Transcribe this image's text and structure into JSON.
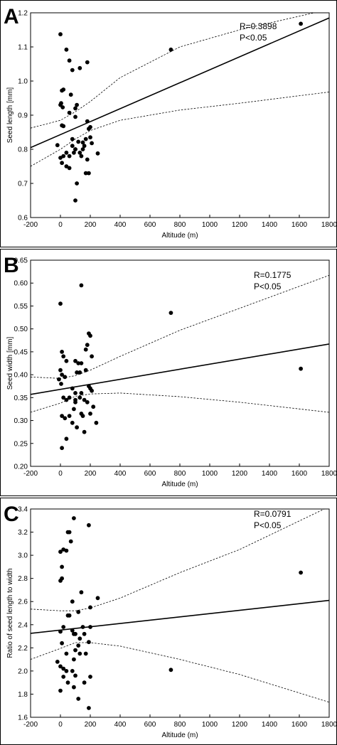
{
  "chart_data": [
    {
      "type": "scatter",
      "panel_label": "A",
      "title": "",
      "xlabel": "Altitude (m)",
      "ylabel": "Seed length [mm]",
      "xlim": [
        -200,
        1800
      ],
      "ylim": [
        0.6,
        1.2
      ],
      "xticks": [
        -200,
        0,
        200,
        400,
        600,
        800,
        1000,
        1200,
        1400,
        1600,
        1800
      ],
      "yticks": [
        0.6,
        0.7,
        0.8,
        0.9,
        1.0,
        1.1,
        1.2
      ],
      "ytick_labels": [
        "0.6",
        "0.7",
        "0.8",
        "0.9",
        "1.0",
        "1.1",
        "1.2"
      ],
      "annotation": [
        "R=0.3898",
        "P<0.05"
      ],
      "fit_line": {
        "x": [
          -200,
          1800
        ],
        "y": [
          0.805,
          1.185
        ]
      },
      "ci_upper": {
        "x": [
          -200,
          0,
          100,
          200,
          400,
          800,
          1200,
          1800
        ],
        "y": [
          0.862,
          0.885,
          0.91,
          0.94,
          1.01,
          1.1,
          1.15,
          1.21
        ]
      },
      "ci_lower": {
        "x": [
          -200,
          0,
          100,
          200,
          400,
          800,
          1200,
          1800
        ],
        "y": [
          0.75,
          0.8,
          0.83,
          0.855,
          0.885,
          0.915,
          0.935,
          0.968
        ]
      },
      "points": {
        "x": [
          0,
          10,
          20,
          5,
          0,
          15,
          40,
          60,
          80,
          130,
          180,
          70,
          110,
          100,
          10,
          20,
          60,
          100,
          180,
          200,
          190,
          80,
          120,
          150,
          170,
          200,
          160,
          210,
          250,
          80,
          100,
          130,
          -20,
          140,
          180,
          100,
          40,
          20,
          0,
          60,
          90,
          150,
          10,
          40,
          60,
          110,
          190,
          170,
          100,
          740,
          1610
        ],
        "y": [
          1.137,
          0.972,
          0.975,
          0.935,
          0.93,
          0.923,
          1.092,
          1.06,
          1.032,
          1.038,
          1.055,
          0.96,
          0.93,
          0.92,
          0.87,
          0.868,
          0.907,
          0.895,
          0.882,
          0.865,
          0.86,
          0.83,
          0.822,
          0.82,
          0.83,
          0.835,
          0.81,
          0.818,
          0.788,
          0.81,
          0.8,
          0.79,
          0.812,
          0.78,
          0.77,
          0.8,
          0.79,
          0.78,
          0.775,
          0.78,
          0.79,
          0.8,
          0.76,
          0.75,
          0.745,
          0.7,
          0.73,
          0.73,
          0.65,
          1.092,
          1.168
        ]
      }
    },
    {
      "type": "scatter",
      "panel_label": "B",
      "title": "",
      "xlabel": "Altitude (m)",
      "ylabel": "Seed width [mm]",
      "xlim": [
        -200,
        1800
      ],
      "ylim": [
        0.2,
        0.65
      ],
      "xticks": [
        -200,
        0,
        200,
        400,
        600,
        800,
        1000,
        1200,
        1400,
        1600,
        1800
      ],
      "yticks": [
        0.2,
        0.25,
        0.3,
        0.35,
        0.4,
        0.45,
        0.5,
        0.55,
        0.6,
        0.65
      ],
      "ytick_labels": [
        "0.20",
        "0.25",
        "0.30",
        "0.35",
        "0.40",
        "0.45",
        "0.50",
        "0.55",
        "0.60",
        "0.65"
      ],
      "annotation": [
        "R=0.1775",
        "P<0.05"
      ],
      "fit_line": {
        "x": [
          -200,
          1800
        ],
        "y": [
          0.357,
          0.467
        ]
      },
      "ci_upper": {
        "x": [
          -200,
          0,
          100,
          200,
          400,
          800,
          1200,
          1800
        ],
        "y": [
          0.395,
          0.392,
          0.398,
          0.41,
          0.44,
          0.497,
          0.545,
          0.617
        ]
      },
      "ci_lower": {
        "x": [
          -200,
          0,
          100,
          200,
          400,
          800,
          1200,
          1800
        ],
        "y": [
          0.318,
          0.338,
          0.353,
          0.358,
          0.36,
          0.352,
          0.34,
          0.318
        ]
      },
      "points": {
        "x": [
          0,
          140,
          190,
          200,
          180,
          170,
          210,
          10,
          20,
          40,
          100,
          120,
          140,
          170,
          0,
          10,
          30,
          110,
          130,
          -10,
          5,
          190,
          200,
          210,
          80,
          100,
          140,
          20,
          60,
          40,
          100,
          160,
          180,
          100,
          130,
          220,
          90,
          10,
          30,
          60,
          140,
          150,
          200,
          240,
          80,
          110,
          160,
          40,
          10,
          740,
          1610
        ],
        "y": [
          0.555,
          0.595,
          0.49,
          0.485,
          0.465,
          0.455,
          0.44,
          0.45,
          0.44,
          0.43,
          0.43,
          0.425,
          0.425,
          0.41,
          0.41,
          0.4,
          0.395,
          0.405,
          0.405,
          0.39,
          0.38,
          0.375,
          0.37,
          0.365,
          0.37,
          0.36,
          0.36,
          0.35,
          0.35,
          0.345,
          0.345,
          0.345,
          0.34,
          0.34,
          0.35,
          0.33,
          0.325,
          0.31,
          0.305,
          0.31,
          0.315,
          0.31,
          0.315,
          0.295,
          0.295,
          0.285,
          0.275,
          0.26,
          0.24,
          0.535,
          0.413
        ]
      }
    },
    {
      "type": "scatter",
      "panel_label": "C",
      "title": "",
      "xlabel": "Altitude (m)",
      "ylabel": "Ratio of seed length to width",
      "xlim": [
        -200,
        1800
      ],
      "ylim": [
        1.6,
        3.4
      ],
      "xticks": [
        -200,
        0,
        200,
        400,
        600,
        800,
        1000,
        1200,
        1400,
        1600,
        1800
      ],
      "yticks": [
        1.6,
        1.8,
        2.0,
        2.2,
        2.4,
        2.6,
        2.8,
        3.0,
        3.2,
        3.4
      ],
      "ytick_labels": [
        "1.6",
        "1.8",
        "2.0",
        "2.2",
        "2.4",
        "2.6",
        "2.8",
        "3.0",
        "3.2",
        "3.4"
      ],
      "annotation": [
        "R=0.0791",
        "P<0.05"
      ],
      "fit_line": {
        "x": [
          -200,
          1800
        ],
        "y": [
          2.325,
          2.61
        ]
      },
      "ci_upper": {
        "x": [
          -200,
          0,
          100,
          200,
          400,
          800,
          1200,
          1800
        ],
        "y": [
          2.535,
          2.52,
          2.52,
          2.545,
          2.63,
          2.85,
          3.05,
          3.42
        ]
      },
      "ci_lower": {
        "x": [
          -200,
          0,
          100,
          200,
          400,
          800,
          1200,
          1800
        ],
        "y": [
          2.1,
          2.195,
          2.245,
          2.245,
          2.215,
          2.1,
          1.97,
          1.73
        ]
      },
      "points": {
        "x": [
          90,
          190,
          50,
          60,
          70,
          20,
          40,
          0,
          10,
          0,
          10,
          140,
          80,
          250,
          120,
          50,
          60,
          200,
          80,
          150,
          200,
          20,
          0,
          90,
          100,
          130,
          160,
          120,
          190,
          100,
          10,
          40,
          130,
          170,
          90,
          -20,
          0,
          20,
          40,
          80,
          100,
          200,
          20,
          50,
          90,
          160,
          0,
          120,
          190,
          740,
          1610
        ],
        "y": [
          3.32,
          3.26,
          3.2,
          3.2,
          3.12,
          3.05,
          3.04,
          3.03,
          2.9,
          2.78,
          2.8,
          2.68,
          2.6,
          2.63,
          2.51,
          2.48,
          2.48,
          2.55,
          2.35,
          2.38,
          2.38,
          2.38,
          2.34,
          2.32,
          2.32,
          2.28,
          2.32,
          2.22,
          2.25,
          2.18,
          2.24,
          2.15,
          2.15,
          2.15,
          2.1,
          2.08,
          2.04,
          2.02,
          2.0,
          2.0,
          1.96,
          1.95,
          1.95,
          1.9,
          1.86,
          1.9,
          1.83,
          1.76,
          1.68,
          2.01,
          2.85
        ]
      }
    }
  ]
}
